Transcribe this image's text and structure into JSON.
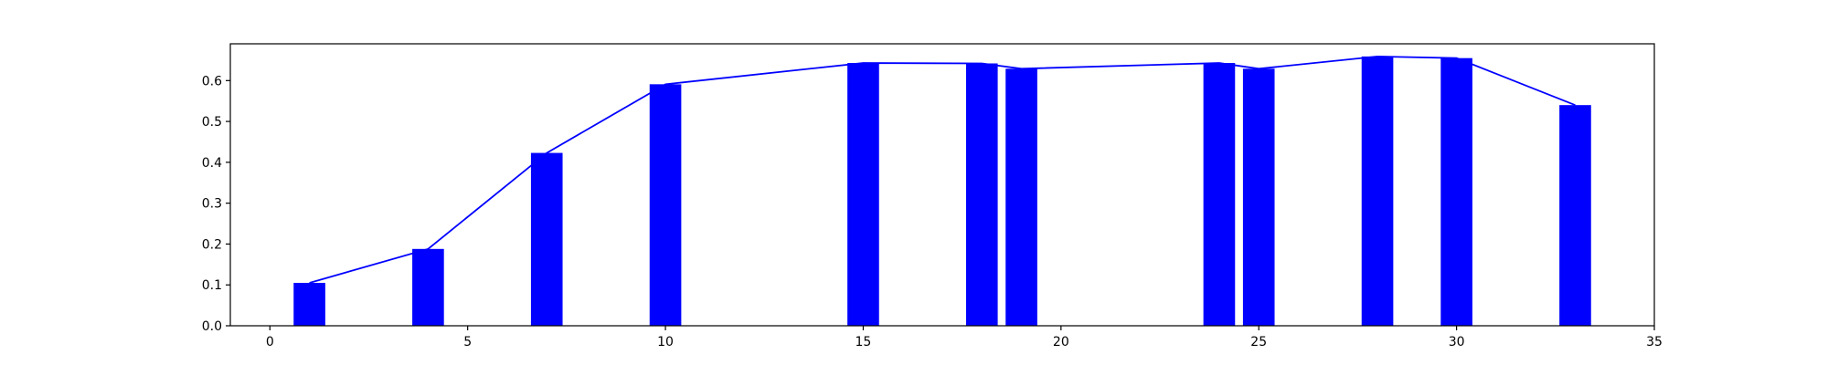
{
  "chart_data": {
    "type": "bar",
    "x": [
      1,
      4,
      7,
      10,
      15,
      18,
      19,
      24,
      25,
      28,
      30,
      33
    ],
    "values": [
      0.105,
      0.188,
      0.423,
      0.591,
      0.643,
      0.642,
      0.629,
      0.643,
      0.629,
      0.659,
      0.655,
      0.54
    ],
    "line_values": [
      0.105,
      0.188,
      0.423,
      0.591,
      0.643,
      0.642,
      0.629,
      0.643,
      0.629,
      0.659,
      0.655,
      0.54
    ],
    "bar_width": 0.8,
    "xlim": [
      -1,
      35
    ],
    "ylim": [
      0,
      0.69
    ],
    "xticks": [
      0,
      5,
      10,
      15,
      20,
      25,
      30,
      35
    ],
    "yticks": [
      0.0,
      0.1,
      0.2,
      0.3,
      0.4,
      0.5,
      0.6
    ],
    "xtick_labels": [
      "0",
      "5",
      "10",
      "15",
      "20",
      "25",
      "30",
      "35"
    ],
    "ytick_labels": [
      "0.0",
      "0.1",
      "0.2",
      "0.3",
      "0.4",
      "0.5",
      "0.6"
    ],
    "bar_color": "#0000ff",
    "line_color": "#0000ff",
    "grid": false,
    "legend": "none",
    "title": "",
    "xlabel": "",
    "ylabel": ""
  }
}
